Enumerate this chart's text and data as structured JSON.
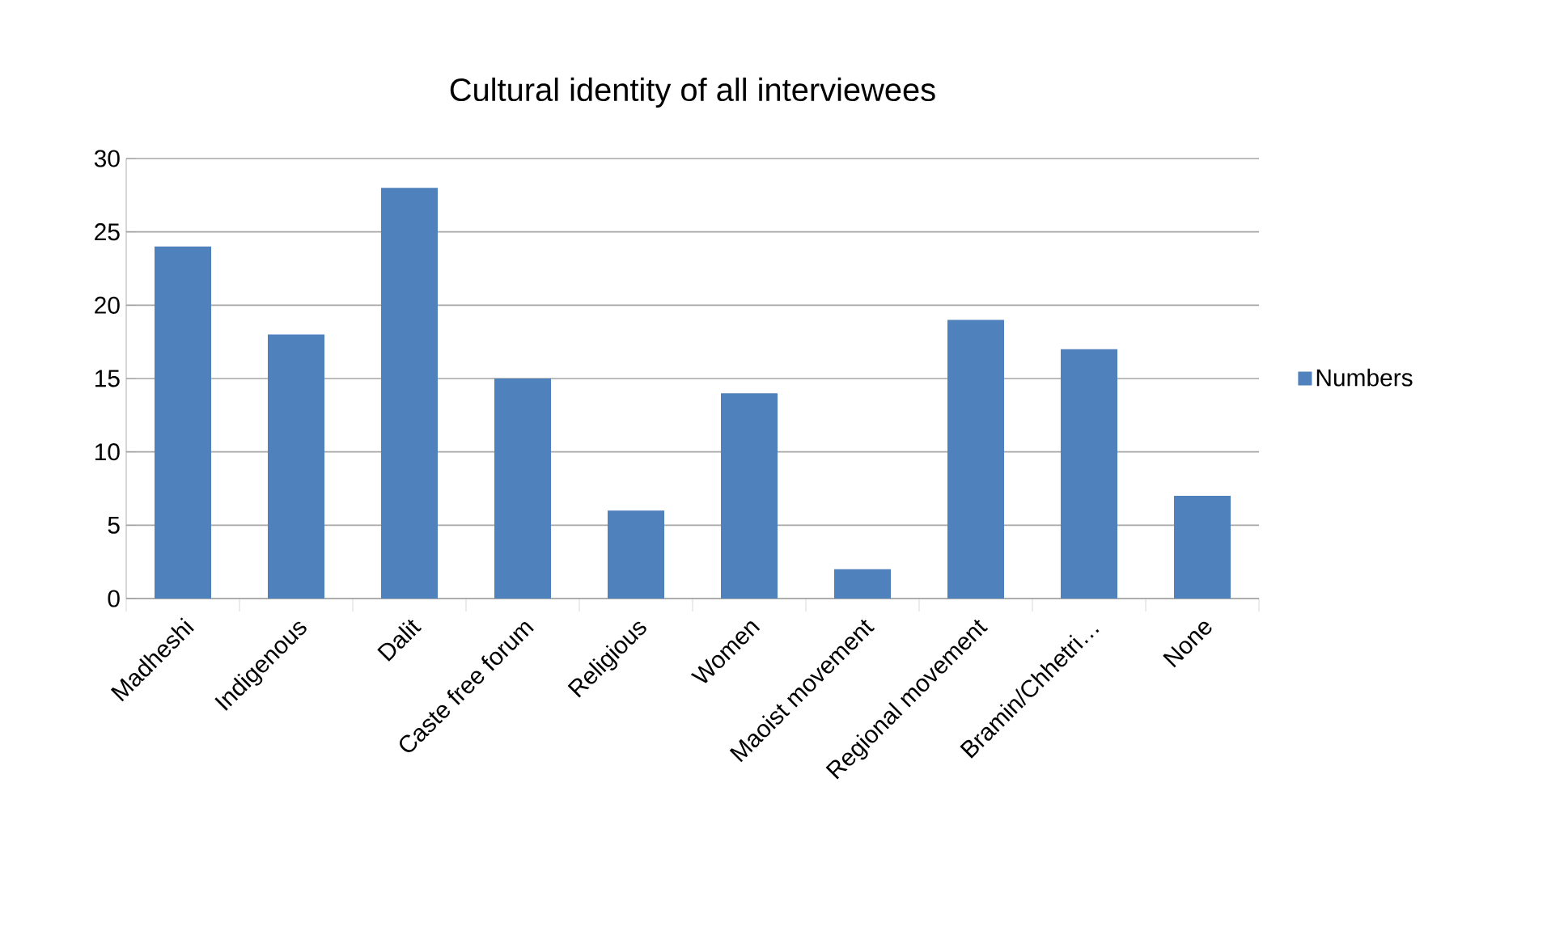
{
  "chart_data": {
    "type": "bar",
    "title": "Cultural identity of all interviewees",
    "categories": [
      "Madheshi",
      "Indigenous",
      "Dalit",
      "Caste free forum",
      "Religious",
      "Women",
      "Maoist movement",
      "Regional movement",
      "Bramin/Chhetri…",
      "None"
    ],
    "series": [
      {
        "name": "Numbers",
        "color": "#4f81bd",
        "values": [
          24,
          18,
          28,
          15,
          6,
          14,
          2,
          19,
          17,
          7
        ]
      }
    ],
    "ylim": [
      0,
      30
    ],
    "yticks": [
      0,
      5,
      10,
      15,
      20,
      25,
      30
    ],
    "grid": "y",
    "legend": "right"
  }
}
